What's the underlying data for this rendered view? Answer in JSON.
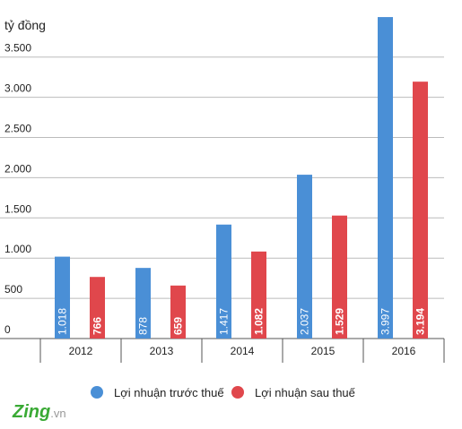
{
  "chart_data": {
    "type": "bar",
    "y_label": "tỷ đồng",
    "categories": [
      "2012",
      "2013",
      "2014",
      "2015",
      "2016"
    ],
    "series": [
      {
        "name": "Lợi nhuận trước thuế",
        "color": "#4a8fd6",
        "values": [
          1018,
          878,
          1417,
          2037,
          3997
        ],
        "value_labels": [
          "1.018",
          "878",
          "1.417",
          "2.037",
          "3.997"
        ]
      },
      {
        "name": "Lợi nhuận sau thuế",
        "color": "#e0474c",
        "values": [
          766,
          659,
          1082,
          1529,
          3194
        ],
        "value_labels": [
          "766",
          "659",
          "1.082",
          "1.529",
          "3.194"
        ]
      }
    ],
    "ylim": [
      0,
      4000
    ],
    "yticks": [
      0,
      500,
      {
        "value": 1000,
        "label": "1.000"
      },
      {
        "value": 1500,
        "label": "1.500"
      },
      {
        "value": 2000,
        "label": "2.000"
      },
      {
        "value": 2500,
        "label": "2.500"
      },
      {
        "value": 3000,
        "label": "3.000"
      },
      {
        "value": 3500,
        "label": "3.500"
      }
    ],
    "grid": true,
    "legend": "bottom",
    "brand": "Zing",
    "brand_suffix": ".vn"
  }
}
